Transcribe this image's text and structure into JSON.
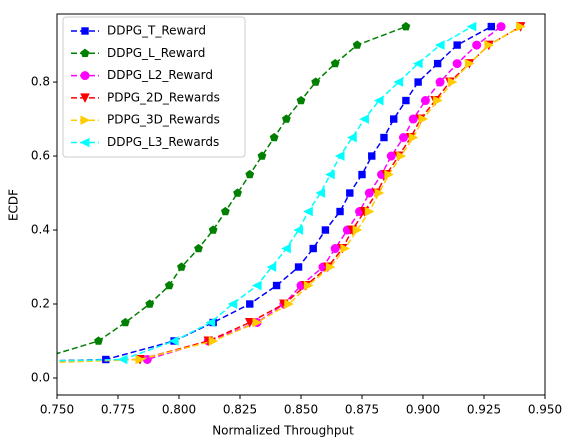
{
  "chart_data": {
    "type": "line",
    "xlabel": "Normalized Throughput",
    "ylabel": "ECDF",
    "xlim": [
      0.75,
      0.95
    ],
    "ylim": [
      -0.046,
      0.984
    ],
    "xticks": [
      {
        "value": 0.75,
        "label": "0.750"
      },
      0.775,
      {
        "value": 0.8,
        "label": "0.800"
      },
      0.825,
      {
        "value": 0.85,
        "label": "0.850"
      },
      0.875,
      {
        "value": 0.9,
        "label": "0.900"
      },
      0.925,
      {
        "value": 0.95,
        "label": "0.950"
      }
    ],
    "yticks": [
      {
        "value": 0,
        "label": "0.0"
      },
      0.2,
      0.4,
      0.6,
      0.8
    ],
    "legend": "upper left",
    "series": [
      {
        "name": "DDPG_T_Reward",
        "color": "#0000ff",
        "marker": "s",
        "x": [
          0.74,
          0.77,
          0.798,
          0.814,
          0.829,
          0.84,
          0.849,
          0.855,
          0.86,
          0.866,
          0.87,
          0.875,
          0.879,
          0.884,
          0.888,
          0.893,
          0.898,
          0.906,
          0.914,
          0.928
        ],
        "values": [
          0.045,
          0.05,
          0.1,
          0.15,
          0.2,
          0.25,
          0.3,
          0.35,
          0.4,
          0.45,
          0.5,
          0.55,
          0.6,
          0.65,
          0.7,
          0.75,
          0.8,
          0.85,
          0.9,
          0.95
        ]
      },
      {
        "name": "DDPG_L_Reward",
        "color": "#008000",
        "marker": "p",
        "x": [
          0.742,
          0.767,
          0.778,
          0.788,
          0.796,
          0.801,
          0.808,
          0.814,
          0.819,
          0.824,
          0.829,
          0.834,
          0.839,
          0.844,
          0.85,
          0.856,
          0.864,
          0.873,
          0.893
        ],
        "values": [
          0.05,
          0.1,
          0.15,
          0.2,
          0.25,
          0.3,
          0.35,
          0.4,
          0.45,
          0.5,
          0.55,
          0.6,
          0.65,
          0.7,
          0.75,
          0.8,
          0.85,
          0.9,
          0.95
        ]
      },
      {
        "name": "DDPG_L2_Reward",
        "color": "#ff00ff",
        "marker": "o",
        "x": [
          0.74,
          0.787,
          0.812,
          0.832,
          0.843,
          0.85,
          0.859,
          0.864,
          0.869,
          0.874,
          0.878,
          0.883,
          0.887,
          0.892,
          0.896,
          0.901,
          0.907,
          0.914,
          0.922,
          0.932
        ],
        "values": [
          0.045,
          0.05,
          0.1,
          0.15,
          0.2,
          0.25,
          0.3,
          0.35,
          0.4,
          0.45,
          0.5,
          0.55,
          0.6,
          0.65,
          0.7,
          0.75,
          0.8,
          0.85,
          0.9,
          0.95
        ]
      },
      {
        "name": "PDPG_2D_Rewards",
        "color": "#ff0000",
        "marker": "v",
        "x": [
          0.74,
          0.784,
          0.812,
          0.829,
          0.843,
          0.852,
          0.861,
          0.867,
          0.871,
          0.876,
          0.881,
          0.885,
          0.89,
          0.895,
          0.899,
          0.905,
          0.911,
          0.919,
          0.927,
          0.94
        ],
        "values": [
          0.045,
          0.05,
          0.1,
          0.15,
          0.2,
          0.25,
          0.3,
          0.35,
          0.4,
          0.45,
          0.5,
          0.55,
          0.6,
          0.65,
          0.7,
          0.75,
          0.8,
          0.85,
          0.9,
          0.95
        ]
      },
      {
        "name": "PDPG_3D_Rewards",
        "color": "#ffcc00",
        "marker": ">",
        "x": [
          0.74,
          0.784,
          0.814,
          0.832,
          0.845,
          0.853,
          0.862,
          0.868,
          0.873,
          0.878,
          0.882,
          0.886,
          0.891,
          0.896,
          0.9,
          0.906,
          0.912,
          0.919,
          0.927,
          0.94
        ],
        "values": [
          0.04,
          0.05,
          0.1,
          0.15,
          0.2,
          0.25,
          0.3,
          0.35,
          0.4,
          0.45,
          0.5,
          0.55,
          0.6,
          0.65,
          0.7,
          0.75,
          0.8,
          0.85,
          0.9,
          0.95
        ]
      },
      {
        "name": "DDPG_L3_Rewards",
        "color": "#00ffff",
        "marker": "<",
        "x": [
          0.74,
          0.777,
          0.798,
          0.813,
          0.822,
          0.832,
          0.838,
          0.844,
          0.849,
          0.853,
          0.858,
          0.862,
          0.866,
          0.871,
          0.876,
          0.882,
          0.89,
          0.898,
          0.907,
          0.92
        ],
        "values": [
          0.045,
          0.05,
          0.1,
          0.15,
          0.2,
          0.25,
          0.3,
          0.35,
          0.4,
          0.45,
          0.5,
          0.55,
          0.6,
          0.65,
          0.7,
          0.75,
          0.8,
          0.85,
          0.9,
          0.95
        ]
      }
    ]
  }
}
